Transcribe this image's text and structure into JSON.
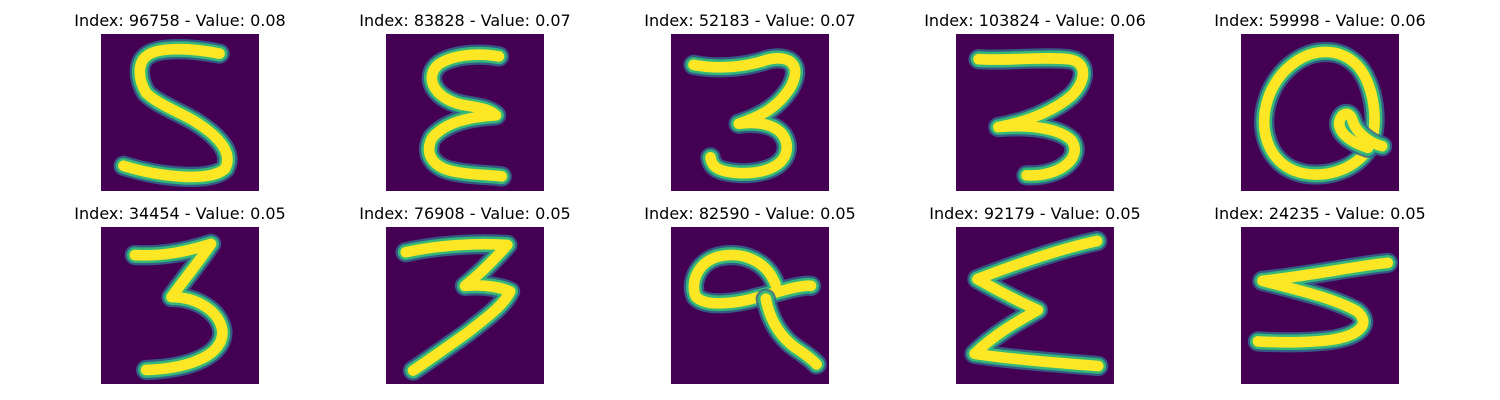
{
  "colors": {
    "background": "#440154",
    "stroke_core": "#fde725",
    "stroke_edge": "#35b779",
    "stroke_halo": "#31688e"
  },
  "panels": [
    {
      "title": "Index: 96758 - Value: 0.08",
      "digit_shape": "5"
    },
    {
      "title": "Index: 83828 - Value: 0.07",
      "digit_shape": "epsilon"
    },
    {
      "title": "Index: 52183 - Value: 0.07",
      "digit_shape": "3"
    },
    {
      "title": "Index: 103824 - Value: 0.06",
      "digit_shape": "3"
    },
    {
      "title": "Index: 59998 - Value: 0.06",
      "digit_shape": "Q"
    },
    {
      "title": "Index: 34454 - Value: 0.05",
      "digit_shape": "3"
    },
    {
      "title": "Index: 76908 - Value: 0.05",
      "digit_shape": "3"
    },
    {
      "title": "Index: 82590 - Value: 0.05",
      "digit_shape": "q"
    },
    {
      "title": "Index: 92179 - Value: 0.05",
      "digit_shape": "sigma"
    },
    {
      "title": "Index: 24235 - Value: 0.05",
      "digit_shape": "5"
    }
  ]
}
